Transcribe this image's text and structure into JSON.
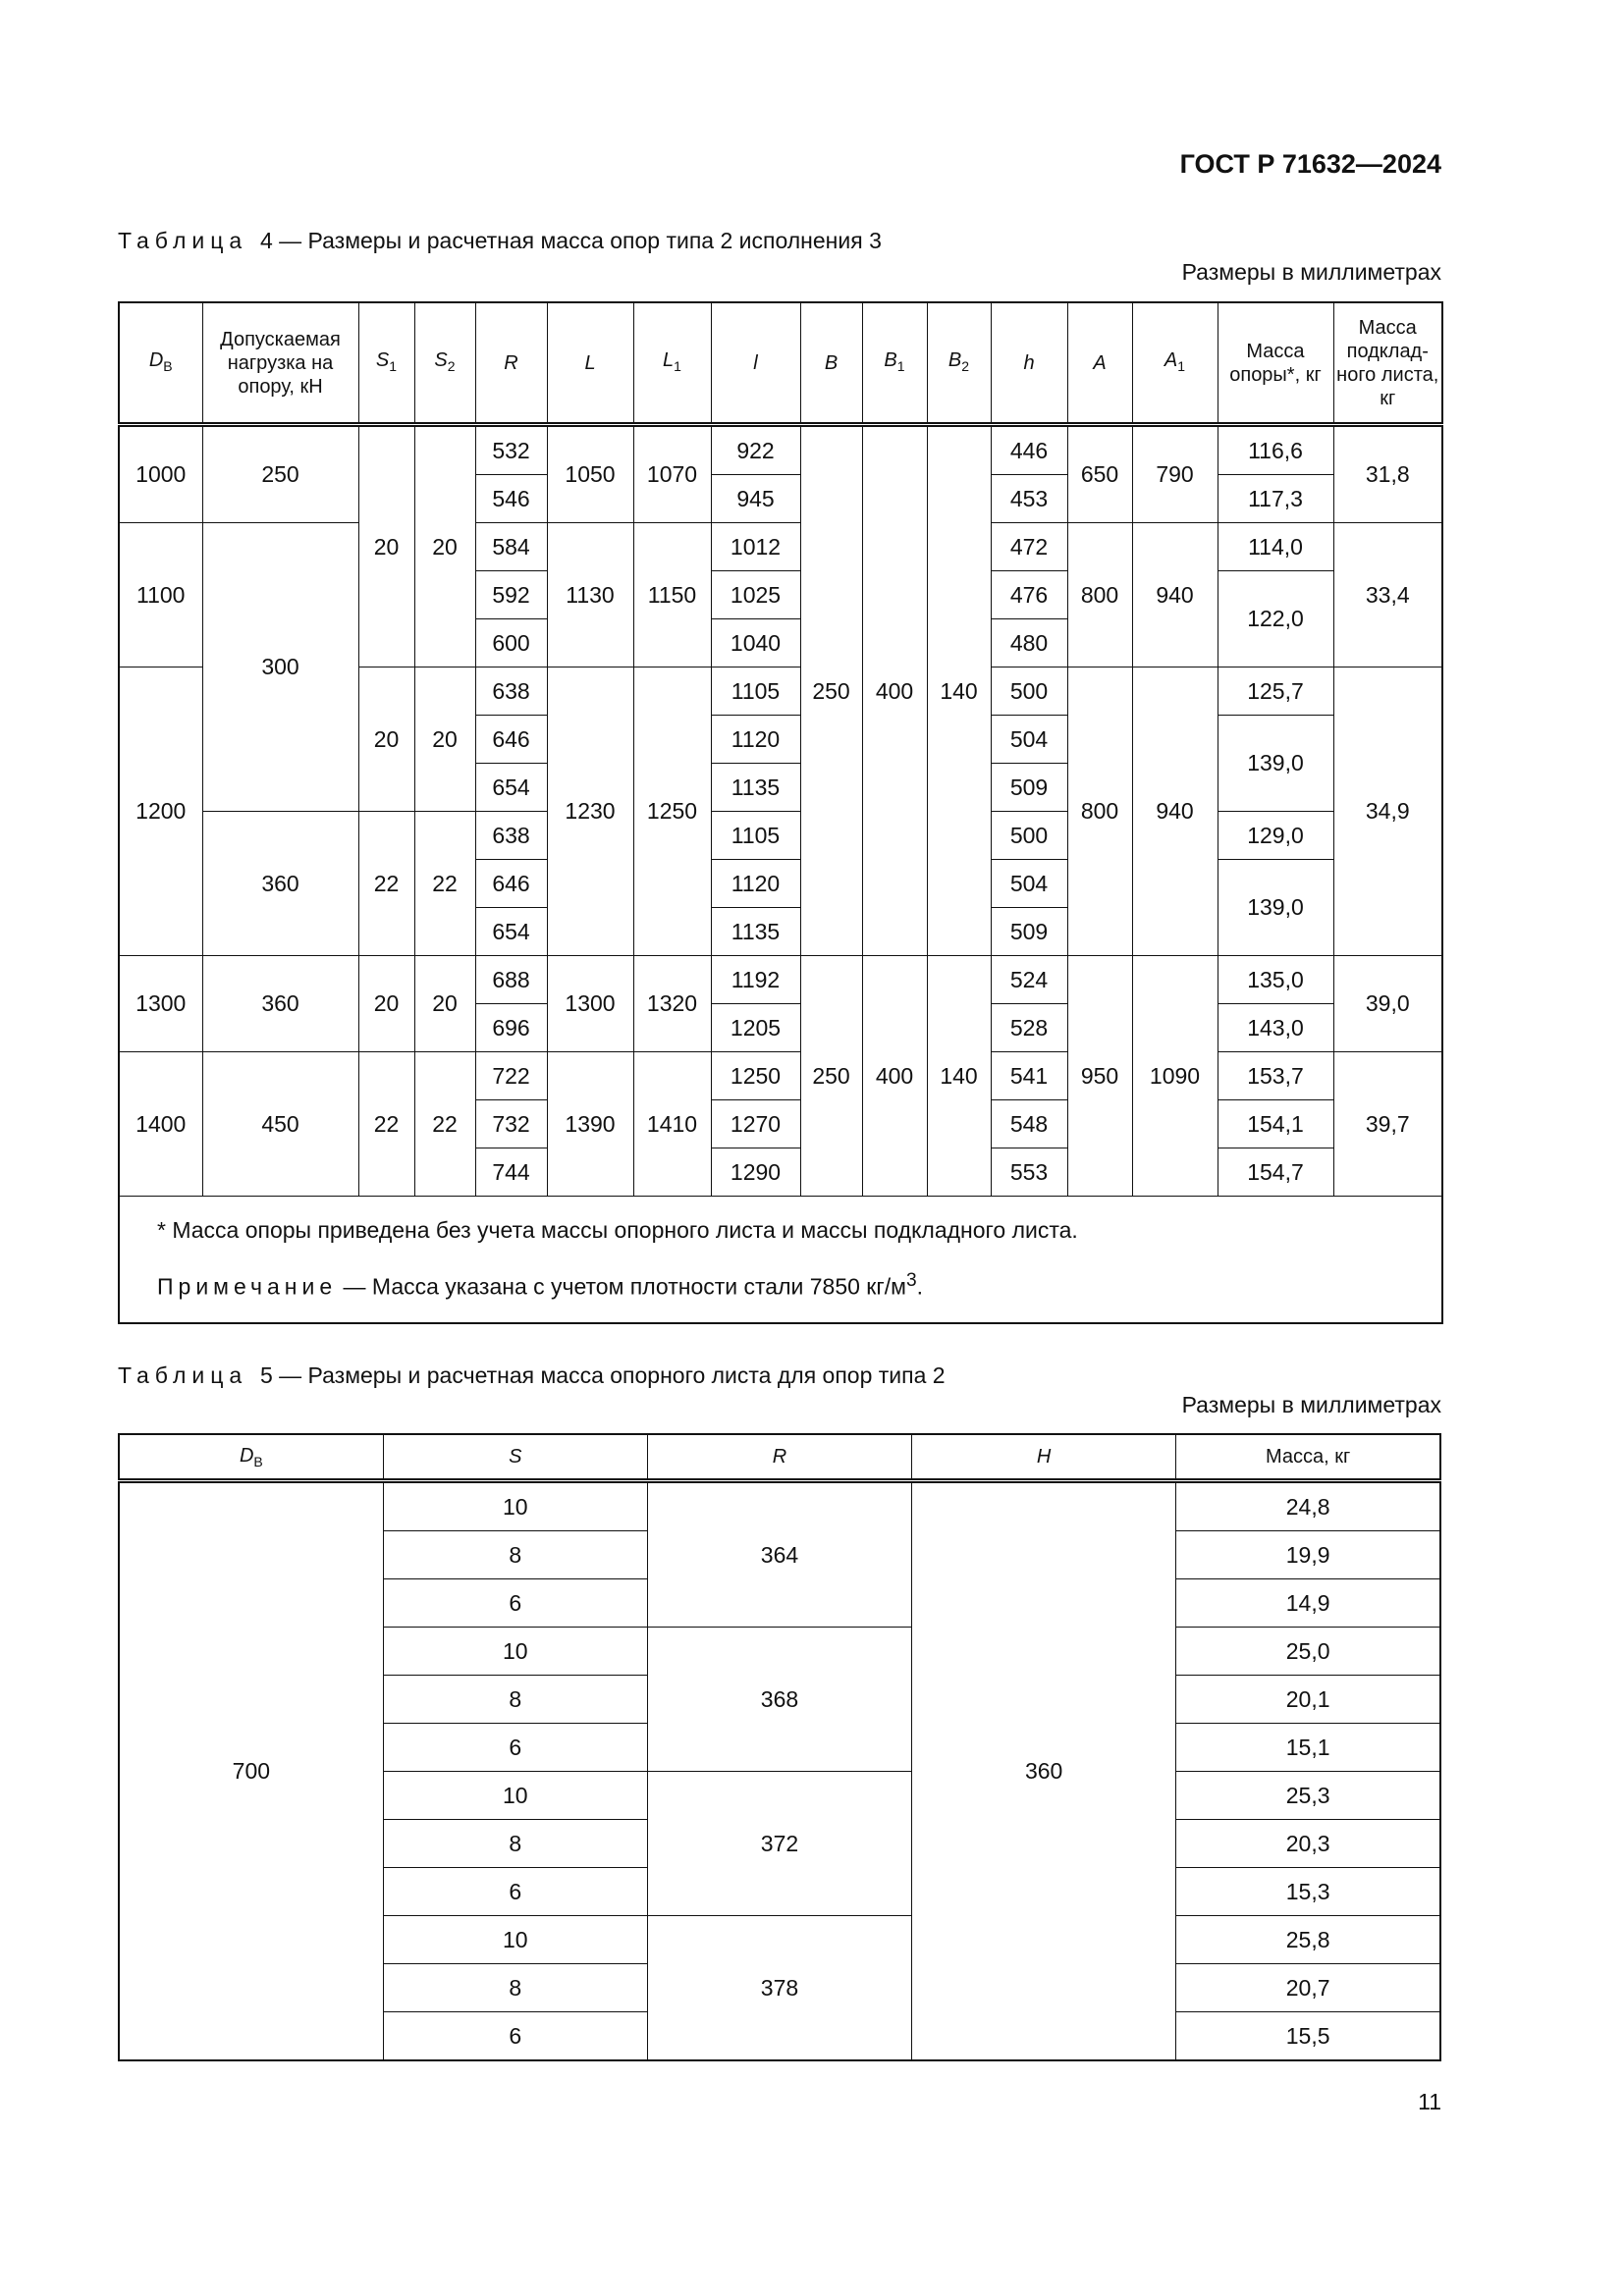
{
  "doc_code": "ГОСТ Р 71632—2024",
  "table4": {
    "caption_word": "Таблица",
    "caption_num": "4",
    "caption_text": "— Размеры и расчетная масса опор типа 2 исполнения 3",
    "units": "Размеры в миллиметрах",
    "headers": [
      {
        "sym": "D",
        "sub": "В"
      },
      {
        "text": "Допускаемая нагрузка на опору, кН"
      },
      {
        "sym": "S",
        "sub": "1"
      },
      {
        "sym": "S",
        "sub": "2"
      },
      {
        "sym": "R"
      },
      {
        "sym": "L"
      },
      {
        "sym": "L",
        "sub": "1"
      },
      {
        "sym": "l"
      },
      {
        "sym": "B"
      },
      {
        "sym": "B",
        "sub": "1"
      },
      {
        "sym": "B",
        "sub": "2"
      },
      {
        "sym": "h"
      },
      {
        "sym": "A"
      },
      {
        "sym": "A",
        "sub": "1"
      },
      {
        "text": "Масса опоры*, кг"
      },
      {
        "text": "Масса подклад-ного листа, кг"
      }
    ],
    "rows": [
      [
        "1000",
        "250",
        "20",
        "20",
        "532",
        "1050",
        "1070",
        "922",
        "250",
        "400",
        "140",
        "446",
        "650",
        "790",
        "116,6",
        "31,8"
      ],
      [
        "546",
        "945",
        "453",
        "117,3"
      ],
      [
        "1100",
        "300",
        "584",
        "1130",
        "1150",
        "1012",
        "472",
        "800",
        "940",
        "114,0",
        "33,4"
      ],
      [
        "592",
        "1025",
        "476",
        "122,0"
      ],
      [
        "600",
        "1040",
        "480"
      ],
      [
        "1200",
        "20",
        "20",
        "638",
        "1230",
        "1250",
        "1105",
        "500",
        "800",
        "940",
        "125,7",
        "34,9"
      ],
      [
        "646",
        "1120",
        "504",
        "139,0"
      ],
      [
        "654",
        "1135",
        "509"
      ],
      [
        "360",
        "22",
        "22",
        "638",
        "1105",
        "500",
        "129,0"
      ],
      [
        "646",
        "1120",
        "504",
        "139,0"
      ],
      [
        "654",
        "1135",
        "509"
      ],
      [
        "1300",
        "360",
        "20",
        "20",
        "688",
        "1300",
        "1320",
        "1192",
        "250",
        "400",
        "140",
        "524",
        "950",
        "1090",
        "135,0",
        "39,0"
      ],
      [
        "696",
        "1205",
        "528",
        "143,0"
      ],
      [
        "1400",
        "450",
        "22",
        "22",
        "722",
        "1390",
        "1410",
        "1250",
        "541",
        "153,7",
        "39,7"
      ],
      [
        "732",
        "1270",
        "548",
        "154,1"
      ],
      [
        "744",
        "1290",
        "553",
        "154,7"
      ]
    ],
    "footnote": "*  Масса опоры приведена без учета массы опорного листа и массы подкладного листа.",
    "note_word": "Примечание",
    "note_text": " — Масса указана с учетом плотности стали 7850 кг/м",
    "note_sup": "3",
    "note_end": "."
  },
  "table5": {
    "caption_word": "Таблица",
    "caption_num": "5",
    "caption_text": "— Размеры и расчетная масса опорного листа для опор типа 2",
    "units": "Размеры в миллиметрах",
    "headers": [
      {
        "sym": "D",
        "sub": "В"
      },
      {
        "sym": "S"
      },
      {
        "sym": "R"
      },
      {
        "sym": "H"
      },
      {
        "text": "Масса, кг"
      }
    ],
    "rows": [
      [
        "700",
        "10",
        "364",
        "360",
        "24,8"
      ],
      [
        "8",
        "19,9"
      ],
      [
        "6",
        "14,9"
      ],
      [
        "10",
        "368",
        "25,0"
      ],
      [
        "8",
        "20,1"
      ],
      [
        "6",
        "15,1"
      ],
      [
        "10",
        "372",
        "25,3"
      ],
      [
        "8",
        "20,3"
      ],
      [
        "6",
        "15,3"
      ],
      [
        "10",
        "378",
        "25,8"
      ],
      [
        "8",
        "20,7"
      ],
      [
        "6",
        "15,5"
      ]
    ]
  },
  "page_number": "11"
}
